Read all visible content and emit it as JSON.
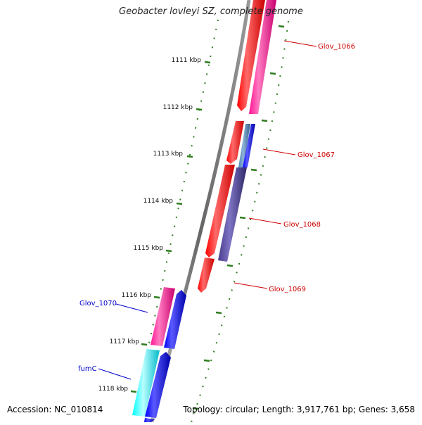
{
  "title": "Geobacter lovleyi SZ, complete genome",
  "accession": "Accession: NC_010814",
  "summary": "Topology: circular; Length: 3,917,761 bp; Genes: 3,658",
  "ticks": [
    "1111 kbp",
    "1112 kbp",
    "1113 kbp",
    "1114 kbp",
    "1115 kbp",
    "1116 kbp",
    "1117 kbp",
    "1118 kbp"
  ],
  "genes": [
    {
      "label": "Glov_1066",
      "color": "#cc0000"
    },
    {
      "label": "Glov_1067",
      "color": "#cc0000"
    },
    {
      "label": "Glov_1068",
      "color": "#cc0000"
    },
    {
      "label": "Glov_1069",
      "color": "#cc0000"
    },
    {
      "label": "Glov_1070",
      "color": "#0000cc"
    },
    {
      "label": "fumC",
      "color": "#0000cc"
    }
  ],
  "colors": {
    "backbone": "#888888",
    "tick": "#2e7d1e",
    "red": "#ff0000",
    "pink": "#ff1493",
    "blue": "#0000ff",
    "steel": "#4682b4",
    "slate": "#483d8b",
    "cyan": "#00ffff"
  }
}
